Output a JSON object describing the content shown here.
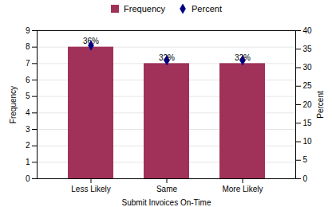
{
  "chart_data": {
    "type": "bar",
    "xlabel": "Submit Invoices On-Time",
    "ylabel": "Frequency",
    "y2label": "Percent",
    "categories": [
      "Less Likely",
      "Same",
      "More Likely"
    ],
    "series": [
      {
        "name": "Frequency",
        "type": "bar",
        "color": "#A0325A",
        "values": [
          8,
          7,
          7
        ]
      },
      {
        "name": "Percent",
        "type": "scatter",
        "axis": "y2",
        "color": "#000080",
        "marker": "diamond",
        "values": [
          36,
          32,
          32
        ]
      }
    ],
    "annotations": [
      "36%",
      "32%",
      "32%"
    ],
    "ylim": [
      0,
      9
    ],
    "yticks": [
      0,
      1,
      2,
      3,
      4,
      5,
      6,
      7,
      8,
      9
    ],
    "y2lim": [
      0,
      40
    ],
    "y2ticks": [
      0,
      5,
      10,
      15,
      20,
      25,
      30,
      35,
      40
    ],
    "grid": true,
    "legend": "top"
  }
}
